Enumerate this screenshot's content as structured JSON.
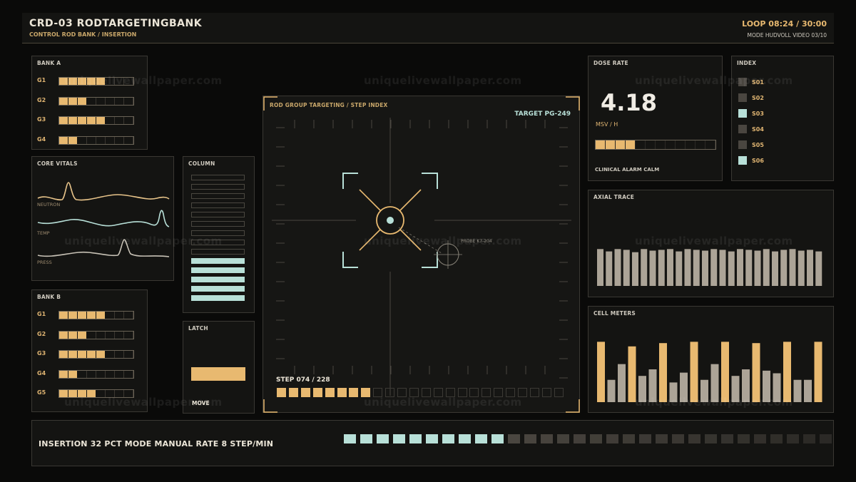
{
  "header": {
    "title": "CRD-03  RODTARGETINGBANK",
    "subtitle": "CONTROL ROD BANK / INSERTION",
    "loop": "LOOP 08:24 / 30:00",
    "mode": "MODE HUDVOLL  VIDEO 03/10"
  },
  "bank_a": {
    "title": "BANK A",
    "rows": [
      {
        "label": "G1",
        "filled": 5,
        "total": 8
      },
      {
        "label": "G2",
        "filled": 3,
        "total": 8
      },
      {
        "label": "G3",
        "filled": 5,
        "total": 8
      },
      {
        "label": "G4",
        "filled": 2,
        "total": 8
      }
    ]
  },
  "core_vitals": {
    "title": "CORE VITALS",
    "traces": [
      {
        "label": "NEUTRON",
        "color": "#e8c48a"
      },
      {
        "label": "TEMP",
        "color": "#b8e0d8"
      },
      {
        "label": "PRESS",
        "color": "#c8c2b6"
      }
    ]
  },
  "column": {
    "title": "COLUMN",
    "filled": 5,
    "total": 14,
    "color": "#b8e0d8"
  },
  "latch": {
    "title": "LATCH",
    "action": "MOVE"
  },
  "bank_b": {
    "title": "BANK B",
    "rows": [
      {
        "label": "G1",
        "filled": 5,
        "total": 8
      },
      {
        "label": "G2",
        "filled": 3,
        "total": 8
      },
      {
        "label": "G3",
        "filled": 5,
        "total": 8
      },
      {
        "label": "G4",
        "filled": 2,
        "total": 8
      },
      {
        "label": "G5",
        "filled": 4,
        "total": 8
      }
    ]
  },
  "targeting": {
    "title": "ROD GROUP TARGETING / STEP INDEX",
    "target": "TARGET PG-249",
    "probe": "PROBE K7-204",
    "step_label": "STEP 074 / 228",
    "steps_filled": 8,
    "steps_total": 24
  },
  "dose": {
    "title": "DOSE RATE",
    "value": "4.18",
    "unit": "MSV / H",
    "filled": 4,
    "total": 12,
    "status": "CLINICAL ALARM CALM"
  },
  "index": {
    "title": "INDEX",
    "items": [
      {
        "label": "S01",
        "color": "#4a4640"
      },
      {
        "label": "S02",
        "color": "#4a4640"
      },
      {
        "label": "S03",
        "color": "#b8e0d8"
      },
      {
        "label": "S04",
        "color": "#4a4640"
      },
      {
        "label": "S05",
        "color": "#4a4640"
      },
      {
        "label": "S06",
        "color": "#b8e0d8"
      }
    ]
  },
  "axial_trace": {
    "title": "AXIAL TRACE",
    "values": [
      47,
      44,
      47,
      46,
      43,
      47,
      45,
      46,
      47,
      44,
      47,
      46,
      45,
      47,
      46,
      44,
      47,
      46,
      45,
      47,
      44,
      46,
      47,
      45,
      46,
      44
    ]
  },
  "cell_meters": {
    "title": "CELL METERS",
    "values": [
      92,
      34,
      58,
      85,
      40,
      50,
      90,
      30,
      45,
      92,
      34,
      58,
      92,
      40,
      50,
      90,
      48,
      44,
      92,
      34,
      34,
      92
    ],
    "accent_color": "#e8b970",
    "base_color": "#aca497"
  },
  "bottom": {
    "status": "INSERTION 32 PCT   MODE MANUAL   RATE 8 STEP/MIN",
    "filled": 10,
    "total": 30
  },
  "watermark": "uniquelivewallpaper.com",
  "colors": {
    "accent": "#e8b970",
    "teal": "#b8e0d8",
    "background": "#0a0a09"
  }
}
